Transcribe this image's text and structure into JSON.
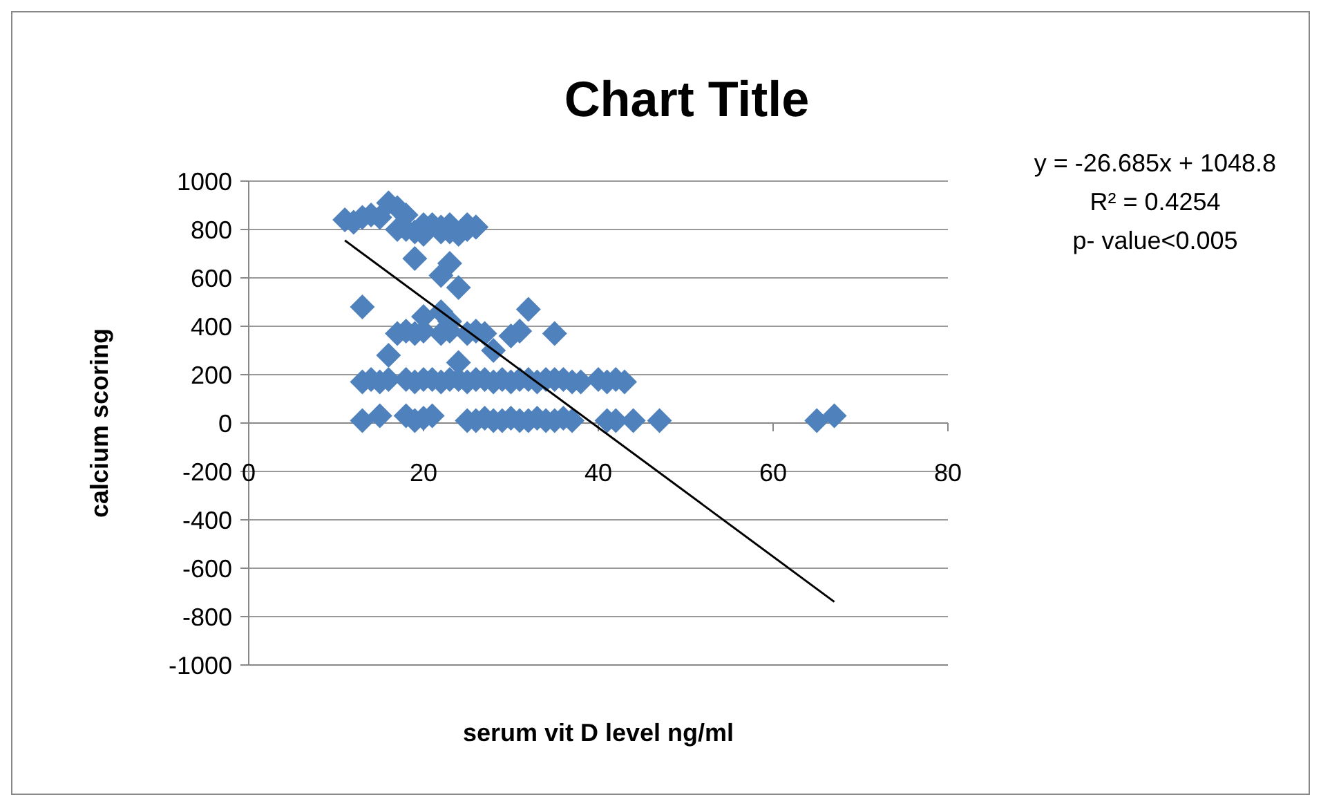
{
  "chart_data": {
    "type": "scatter",
    "title": "Chart Title",
    "xlabel": "serum vit D level ng/ml",
    "ylabel": "calcium scoring",
    "xlim": [
      0,
      80
    ],
    "xticks": [
      0,
      20,
      40,
      60,
      80
    ],
    "ylim": [
      -1000,
      1000
    ],
    "yticks": [
      -1000,
      -800,
      -600,
      -400,
      -200,
      0,
      200,
      400,
      600,
      800,
      1000
    ],
    "grid": "y",
    "annotations": [
      "y = -26.685x + 1048.8",
      "R² = 0.4254",
      "p- value<0.005"
    ],
    "series": [
      {
        "color": "#4f81bd",
        "marker": "diamond",
        "x": [
          11,
          12,
          13,
          14,
          16,
          17,
          18,
          20,
          21,
          22,
          23,
          25,
          26,
          15,
          17,
          18,
          19,
          20,
          22,
          23,
          24,
          25,
          26,
          19,
          23,
          22,
          24,
          13,
          32,
          35,
          17,
          18,
          19,
          20,
          22,
          23,
          25,
          26,
          27,
          30,
          31,
          20,
          22,
          23,
          16,
          24,
          28,
          13,
          14,
          15,
          16,
          18,
          19,
          20,
          21,
          22,
          23,
          24,
          25,
          26,
          27,
          28,
          29,
          30,
          31,
          32,
          33,
          34,
          35,
          36,
          37,
          38,
          40,
          41,
          42,
          43,
          13,
          15,
          18,
          19,
          20,
          21,
          25,
          26,
          27,
          28,
          29,
          30,
          31,
          32,
          33,
          34,
          35,
          36,
          37,
          41,
          42,
          44,
          47,
          65,
          67
        ],
        "values": [
          840,
          830,
          850,
          860,
          910,
          890,
          860,
          820,
          820,
          810,
          820,
          820,
          810,
          850,
          800,
          800,
          790,
          780,
          790,
          790,
          780,
          800,
          810,
          680,
          660,
          610,
          560,
          480,
          470,
          370,
          370,
          380,
          370,
          380,
          370,
          380,
          370,
          380,
          370,
          360,
          380,
          440,
          460,
          420,
          280,
          250,
          300,
          170,
          180,
          170,
          180,
          180,
          170,
          180,
          180,
          170,
          180,
          180,
          170,
          180,
          180,
          170,
          180,
          170,
          180,
          180,
          170,
          180,
          180,
          180,
          170,
          170,
          180,
          170,
          180,
          170,
          10,
          30,
          30,
          10,
          20,
          30,
          10,
          10,
          20,
          10,
          10,
          20,
          10,
          10,
          20,
          10,
          10,
          20,
          10,
          10,
          10,
          10,
          10,
          10,
          30
        ]
      },
      {
        "type": "line",
        "color": "#000000",
        "x": [
          11,
          67
        ],
        "values": [
          755,
          -739
        ]
      }
    ]
  }
}
